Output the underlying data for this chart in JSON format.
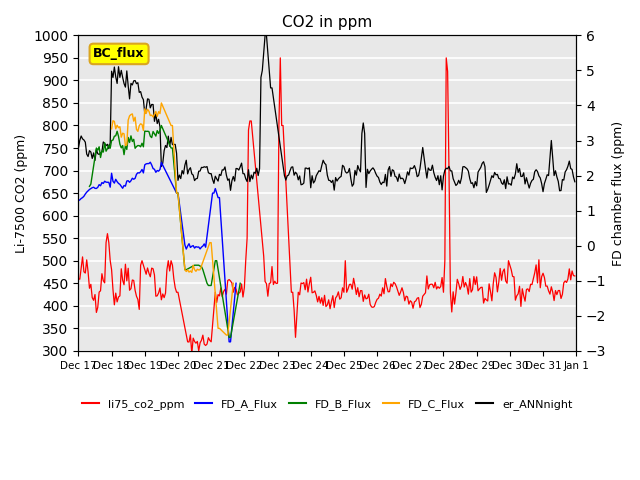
{
  "title": "CO2 in ppm",
  "ylabel_left": "Li-7500 CO2 (ppm)",
  "ylabel_right": "FD chamber flux (ppm)",
  "ylim_left": [
    300,
    1000
  ],
  "ylim_right": [
    -3.0,
    6.0
  ],
  "yticks_left": [
    300,
    350,
    400,
    450,
    500,
    550,
    600,
    650,
    700,
    750,
    800,
    850,
    900,
    950,
    1000
  ],
  "yticks_right": [
    -3.0,
    -2.0,
    -1.0,
    0.0,
    1.0,
    2.0,
    3.0,
    4.0,
    5.0,
    6.0
  ],
  "n_points": 360,
  "bg_color": "#e8e8e8",
  "grid_color": "white",
  "annotation_text": "BC_flux",
  "legend_labels": [
    "li75_co2_ppm",
    "FD_A_Flux",
    "FD_B_Flux",
    "FD_C_Flux",
    "er_ANNnight"
  ],
  "legend_colors": [
    "red",
    "blue",
    "green",
    "orange",
    "black"
  ],
  "xtick_labels": [
    "Dec 17",
    "Dec 18",
    "Dec 19",
    "Dec 20",
    "Dec 21",
    "Dec 22",
    "Dec 23",
    "Dec 24",
    "Dec 25",
    "Dec 26",
    "Dec 27",
    "Dec 28",
    "Dec 29",
    "Dec 30",
    "Dec 31",
    "Jan 1"
  ],
  "xtick_positions": [
    0,
    24,
    48,
    72,
    96,
    120,
    144,
    168,
    192,
    216,
    240,
    264,
    288,
    312,
    336,
    360
  ]
}
